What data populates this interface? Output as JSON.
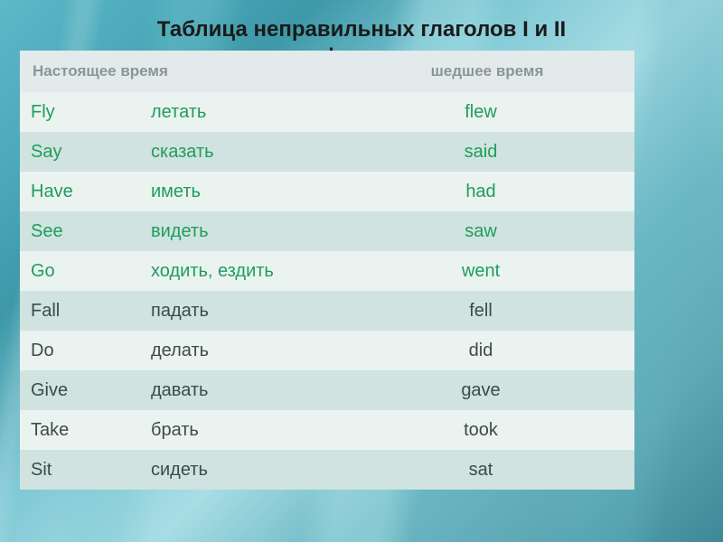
{
  "title_line1": "Таблица неправильных глаголов I и II",
  "title_line2": "формы",
  "header_present": "Настоящее время",
  "header_past": "шедшее  время",
  "rows": [
    {
      "verb": "Fly",
      "trans": "летать",
      "past": "flew",
      "green": true
    },
    {
      "verb": "Say",
      "trans": "сказать",
      "past": "said",
      "green": true
    },
    {
      "verb": "Have",
      "trans": "иметь",
      "past": "had",
      "green": true
    },
    {
      "verb": "See",
      "trans": "видеть",
      "past": "saw",
      "green": true
    },
    {
      "verb": "Go",
      "trans": "ходить, ездить",
      "past": "went",
      "green": true
    },
    {
      "verb": "Fall",
      "trans": "падать",
      "past": "fell",
      "green": false
    },
    {
      "verb": "Do",
      "trans": "делать",
      "past": "did",
      "green": false
    },
    {
      "verb": "Give",
      "trans": "давать",
      "past": "gave",
      "green": false
    },
    {
      "verb": "Take",
      "trans": "брать",
      "past": "took",
      "green": false
    },
    {
      "verb": "Sit",
      "trans": "сидеть",
      "past": "sat",
      "green": false
    }
  ],
  "colors": {
    "green_text": "#1f9d5a",
    "dark_text": "#3d4a4d",
    "header_bg": "#e3eaec",
    "header_text": "#8a9598",
    "stripe_a": "#eaf3f0",
    "stripe_b": "#d0e3e0",
    "title_color": "#1a1a1a"
  },
  "fonts": {
    "title_size_pt": 18,
    "body_size_pt": 15,
    "header_size_pt": 13
  }
}
